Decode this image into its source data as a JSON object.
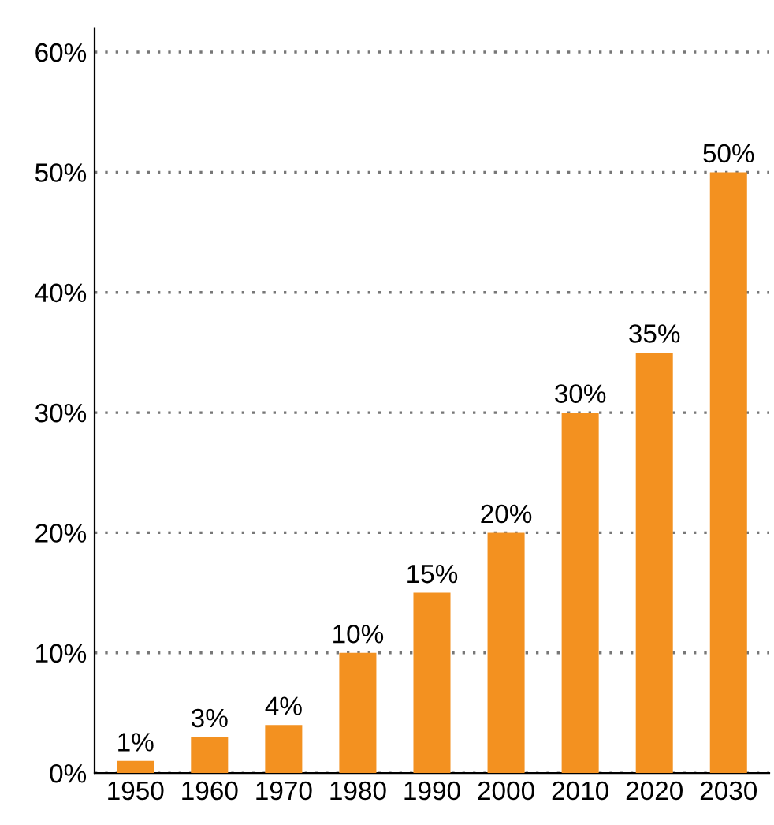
{
  "chart_data": {
    "type": "bar",
    "categories": [
      "1950",
      "1960",
      "1970",
      "1980",
      "1990",
      "2000",
      "2010",
      "2020",
      "2030"
    ],
    "values": [
      1,
      3,
      4,
      10,
      15,
      20,
      30,
      35,
      50
    ],
    "value_labels": [
      "1%",
      "3%",
      "4%",
      "10%",
      "15%",
      "20%",
      "30%",
      "35%",
      "50%"
    ],
    "color": "#f39120",
    "ylim": [
      0,
      62
    ],
    "yticks": [
      {
        "value": 0,
        "label": "0%"
      },
      {
        "value": 10,
        "label": "10%"
      },
      {
        "value": 20,
        "label": "20%"
      },
      {
        "value": 30,
        "label": "30%"
      },
      {
        "value": 40,
        "label": "40%"
      },
      {
        "value": 50,
        "label": "50%"
      },
      {
        "value": 60,
        "label": "60%"
      }
    ],
    "grid": "y"
  }
}
